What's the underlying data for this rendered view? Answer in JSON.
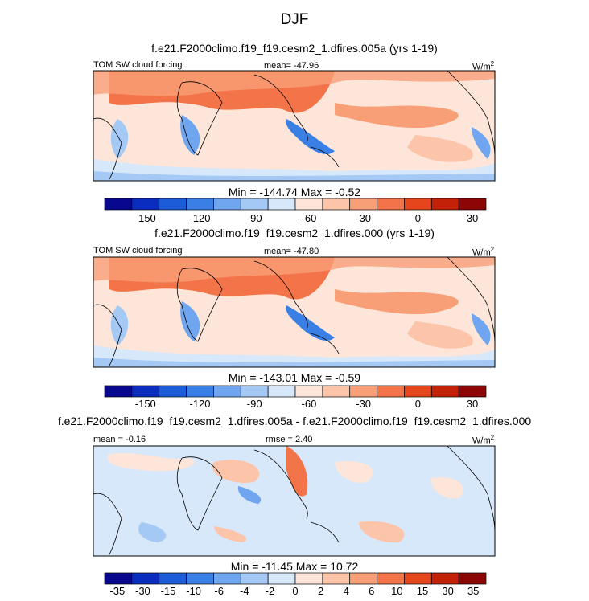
{
  "figure": {
    "title": "DJF"
  },
  "colors": {
    "diverging_palette": [
      "#08088f",
      "#0a2dc0",
      "#1c5cd8",
      "#3a7fe6",
      "#6fa6ef",
      "#a5c9f5",
      "#d7e8fb",
      "#fde6d9",
      "#fcc5aa",
      "#f99f78",
      "#f37448",
      "#e6461c",
      "#c42208",
      "#8c0606"
    ],
    "coastline": "#000000",
    "frame": "#000000"
  },
  "chart_data": [
    {
      "type": "heatmap",
      "title": "f.e21.F2000climo.f19_f19.cesm2_1.dfires.005a (yrs 1-19)",
      "left_label": "TOM SW cloud forcing",
      "center_label": "mean= -47.96",
      "units": "W/m",
      "units_sup": "2",
      "minmax": "Min = -144.74 Max =  -0.52",
      "colorbar_ticks": [
        "-150",
        "-120",
        "-90",
        "-60",
        "-30",
        "0",
        "30"
      ],
      "colorbar_levels": [
        -165,
        -150,
        -135,
        -120,
        -105,
        -90,
        -75,
        -60,
        -45,
        -30,
        -15,
        0,
        15,
        30,
        45
      ],
      "min": -144.74,
      "max": -0.52,
      "mean": -47.96
    },
    {
      "type": "heatmap",
      "title": "f.e21.F2000climo.f19_f19.cesm2_1.dfires.000 (yrs 1-19)",
      "left_label": "TOM SW cloud forcing",
      "center_label": "mean= -47.80",
      "units": "W/m",
      "units_sup": "2",
      "minmax": "Min = -143.01 Max =  -0.59",
      "colorbar_ticks": [
        "-150",
        "-120",
        "-90",
        "-60",
        "-30",
        "0",
        "30"
      ],
      "colorbar_levels": [
        -165,
        -150,
        -135,
        -120,
        -105,
        -90,
        -75,
        -60,
        -45,
        -30,
        -15,
        0,
        15,
        30,
        45
      ],
      "min": -143.01,
      "max": -0.59,
      "mean": -47.8
    },
    {
      "type": "heatmap",
      "title": "f.e21.F2000climo.f19_f19.cesm2_1.dfires.005a - f.e21.F2000climo.f19_f19.cesm2_1.dfires.000",
      "left_label": "mean =  -0.16",
      "center_label": "rmse =  2.40",
      "units": "W/m",
      "units_sup": "2",
      "minmax": "Min = -11.45 Max =  10.72",
      "colorbar_ticks": [
        "-35",
        "-30",
        "-15",
        "-10",
        "-6",
        "-4",
        "-2",
        "0",
        "2",
        "4",
        "6",
        "10",
        "15",
        "30",
        "35"
      ],
      "colorbar_levels": [
        -35,
        -30,
        -15,
        -10,
        -6,
        -4,
        -2,
        0,
        2,
        4,
        6,
        10,
        15,
        30,
        35
      ],
      "min": -11.45,
      "max": 10.72,
      "mean": -0.16,
      "rmse": 2.4
    }
  ]
}
